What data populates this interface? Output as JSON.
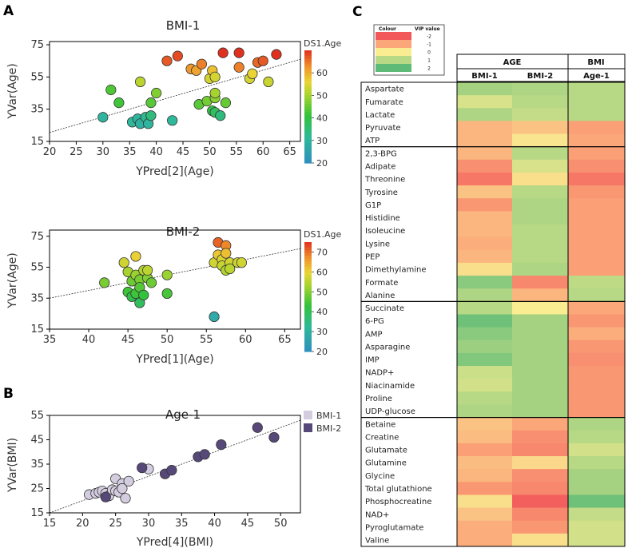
{
  "panels": {
    "a": "A",
    "b": "B",
    "c": "C"
  },
  "chart_data": [
    {
      "id": "bmi1",
      "type": "scatter",
      "title": "BMI-1",
      "xlabel": "YPred[2](Age)",
      "ylabel": "YVar(Age)",
      "xlim": [
        20,
        67
      ],
      "ylim": [
        15,
        77
      ],
      "xticks": [
        "20",
        "25",
        "30",
        "35",
        "40",
        "45",
        "50",
        "55",
        "60",
        "65"
      ],
      "yticks": [
        "15",
        "35",
        "55",
        "75"
      ],
      "trend": [
        [
          20,
          20.5
        ],
        [
          67,
          66
        ]
      ],
      "colorbar": {
        "title": "DS1.Age",
        "ticks": [
          "20",
          "30",
          "40",
          "50",
          "60"
        ],
        "range": [
          20,
          70
        ]
      },
      "points": [
        {
          "x": 30,
          "y": 30,
          "c": 30
        },
        {
          "x": 31.5,
          "y": 47,
          "c": 43
        },
        {
          "x": 33,
          "y": 39,
          "c": 42
        },
        {
          "x": 35.5,
          "y": 27,
          "c": 31
        },
        {
          "x": 36.5,
          "y": 29,
          "c": 30
        },
        {
          "x": 37,
          "y": 52,
          "c": 52
        },
        {
          "x": 37,
          "y": 26,
          "c": 29
        },
        {
          "x": 38,
          "y": 30,
          "c": 32
        },
        {
          "x": 38.5,
          "y": 26,
          "c": 30
        },
        {
          "x": 39,
          "y": 31,
          "c": 34
        },
        {
          "x": 39,
          "y": 39,
          "c": 44
        },
        {
          "x": 40,
          "y": 45,
          "c": 47
        },
        {
          "x": 42,
          "y": 65,
          "c": 67
        },
        {
          "x": 43,
          "y": 28,
          "c": 31
        },
        {
          "x": 44,
          "y": 68,
          "c": 68
        },
        {
          "x": 46.5,
          "y": 60,
          "c": 62
        },
        {
          "x": 47.5,
          "y": 59,
          "c": 61
        },
        {
          "x": 48,
          "y": 38,
          "c": 44
        },
        {
          "x": 48.5,
          "y": 63,
          "c": 64
        },
        {
          "x": 49.5,
          "y": 40,
          "c": 46
        },
        {
          "x": 50,
          "y": 54,
          "c": 54
        },
        {
          "x": 50.5,
          "y": 34,
          "c": 40
        },
        {
          "x": 50.5,
          "y": 59,
          "c": 58
        },
        {
          "x": 51,
          "y": 33,
          "c": 37
        },
        {
          "x": 51,
          "y": 55,
          "c": 54
        },
        {
          "x": 51,
          "y": 42,
          "c": 48
        },
        {
          "x": 51,
          "y": 45,
          "c": 50
        },
        {
          "x": 52,
          "y": 31,
          "c": 34
        },
        {
          "x": 52.5,
          "y": 70,
          "c": 72
        },
        {
          "x": 53,
          "y": 39,
          "c": 45
        },
        {
          "x": 55.5,
          "y": 70,
          "c": 71
        },
        {
          "x": 55.5,
          "y": 61,
          "c": 64
        },
        {
          "x": 57.5,
          "y": 54,
          "c": 54
        },
        {
          "x": 58,
          "y": 57,
          "c": 56
        },
        {
          "x": 59,
          "y": 64,
          "c": 66
        },
        {
          "x": 60,
          "y": 65,
          "c": 67
        },
        {
          "x": 61,
          "y": 52,
          "c": 53
        },
        {
          "x": 62.5,
          "y": 69,
          "c": 70
        }
      ]
    },
    {
      "id": "bmi2",
      "type": "scatter",
      "title": "BMI-2",
      "xlabel": "YPred[1](Age)",
      "ylabel": "YVar(Age)",
      "xlim": [
        35,
        67
      ],
      "ylim": [
        15,
        79
      ],
      "xticks": [
        "35",
        "40",
        "45",
        "50",
        "55",
        "60",
        "65"
      ],
      "yticks": [
        "15",
        "35",
        "55",
        "75"
      ],
      "trend": [
        [
          35,
          35
        ],
        [
          67,
          67
        ]
      ],
      "colorbar": {
        "title": "DS1.Age",
        "ticks": [
          "20",
          "30",
          "40",
          "50",
          "60",
          "70"
        ],
        "range": [
          20,
          75
        ]
      },
      "points": [
        {
          "x": 42,
          "y": 45,
          "c": 49
        },
        {
          "x": 44.5,
          "y": 58,
          "c": 57
        },
        {
          "x": 45,
          "y": 52,
          "c": 53
        },
        {
          "x": 45,
          "y": 39,
          "c": 44
        },
        {
          "x": 45.5,
          "y": 46,
          "c": 48
        },
        {
          "x": 45.5,
          "y": 36,
          "c": 41
        },
        {
          "x": 46,
          "y": 62,
          "c": 60
        },
        {
          "x": 46,
          "y": 50,
          "c": 52
        },
        {
          "x": 46,
          "y": 38,
          "c": 44
        },
        {
          "x": 46.5,
          "y": 47,
          "c": 49
        },
        {
          "x": 46.5,
          "y": 42,
          "c": 46
        },
        {
          "x": 46.5,
          "y": 32,
          "c": 39
        },
        {
          "x": 47,
          "y": 53,
          "c": 54
        },
        {
          "x": 47,
          "y": 37,
          "c": 43
        },
        {
          "x": 47.5,
          "y": 48,
          "c": 50
        },
        {
          "x": 47.5,
          "y": 53,
          "c": 55
        },
        {
          "x": 48,
          "y": 45,
          "c": 48
        },
        {
          "x": 50,
          "y": 50,
          "c": 52
        },
        {
          "x": 50,
          "y": 38,
          "c": 45
        },
        {
          "x": 56,
          "y": 23,
          "c": 28
        },
        {
          "x": 56,
          "y": 58,
          "c": 57
        },
        {
          "x": 56.5,
          "y": 71,
          "c": 71
        },
        {
          "x": 56.5,
          "y": 63,
          "c": 61
        },
        {
          "x": 57,
          "y": 60,
          "c": 58
        },
        {
          "x": 57,
          "y": 56,
          "c": 56
        },
        {
          "x": 57.5,
          "y": 69,
          "c": 68
        },
        {
          "x": 57.5,
          "y": 64,
          "c": 62
        },
        {
          "x": 57.5,
          "y": 53,
          "c": 54
        },
        {
          "x": 58,
          "y": 58,
          "c": 57
        },
        {
          "x": 58,
          "y": 54,
          "c": 55
        },
        {
          "x": 59,
          "y": 58,
          "c": 57
        },
        {
          "x": 59.5,
          "y": 58,
          "c": 57
        }
      ]
    },
    {
      "id": "age1",
      "type": "scatter",
      "title": "Age-1",
      "xlabel": "YPred[4](BMI)",
      "ylabel": "YVar(BMI)",
      "xlim": [
        15,
        53
      ],
      "ylim": [
        15,
        55
      ],
      "xticks": [
        "15",
        "20",
        "25",
        "30",
        "35",
        "40",
        "45",
        "50"
      ],
      "yticks": [
        "15",
        "25",
        "35",
        "45",
        "55"
      ],
      "trend": [
        [
          15,
          15
        ],
        [
          53,
          53
        ]
      ],
      "legend": [
        {
          "name": "BMI-1",
          "color": "#d4cde0"
        },
        {
          "name": "BMI-2",
          "color": "#57487a"
        }
      ],
      "points": [
        {
          "x": 21,
          "y": 22.5,
          "g": 0
        },
        {
          "x": 22,
          "y": 23,
          "g": 0
        },
        {
          "x": 22.5,
          "y": 23.5,
          "g": 0
        },
        {
          "x": 23,
          "y": 24,
          "g": 0
        },
        {
          "x": 23.5,
          "y": 23,
          "g": 0
        },
        {
          "x": 24,
          "y": 22,
          "g": 0
        },
        {
          "x": 24.5,
          "y": 24.5,
          "g": 0
        },
        {
          "x": 25,
          "y": 24,
          "g": 0
        },
        {
          "x": 25,
          "y": 29,
          "g": 0
        },
        {
          "x": 25.5,
          "y": 23.5,
          "g": 0
        },
        {
          "x": 26,
          "y": 27,
          "g": 0
        },
        {
          "x": 26,
          "y": 25,
          "g": 0
        },
        {
          "x": 26.5,
          "y": 21,
          "g": 0
        },
        {
          "x": 27,
          "y": 28,
          "g": 0
        },
        {
          "x": 30,
          "y": 33,
          "g": 0
        },
        {
          "x": 23.5,
          "y": 21.5,
          "g": 1
        },
        {
          "x": 29,
          "y": 33.5,
          "g": 1
        },
        {
          "x": 32.5,
          "y": 31,
          "g": 1
        },
        {
          "x": 33.5,
          "y": 32.5,
          "g": 1
        },
        {
          "x": 37.5,
          "y": 38,
          "g": 1
        },
        {
          "x": 38.5,
          "y": 39,
          "g": 1
        },
        {
          "x": 41,
          "y": 43,
          "g": 1
        },
        {
          "x": 46.5,
          "y": 50,
          "g": 1
        },
        {
          "x": 49,
          "y": 46,
          "g": 1
        }
      ]
    },
    {
      "id": "vip",
      "type": "heatmap",
      "legend": {
        "header_colour": "Colour",
        "header_value": "VIP value",
        "levels": [
          "-2",
          "-1",
          "0",
          "1",
          "2"
        ]
      },
      "columns": {
        "group_age": "AGE",
        "group_bmi": "BMI",
        "cols": [
          "BMI-1",
          "BMI-2",
          "Age-1"
        ]
      },
      "groups": [
        {
          "rows": [
            {
              "name": "Aspartate",
              "v": [
                1.2,
                1.1,
                1.0
              ]
            },
            {
              "name": "Fumarate",
              "v": [
                0.5,
                1.0,
                1.0
              ]
            },
            {
              "name": "Lactate",
              "v": [
                1.1,
                0.8,
                1.0
              ]
            },
            {
              "name": "Pyruvate",
              "v": [
                -0.8,
                -0.6,
                -1.1
              ]
            },
            {
              "name": "ATP",
              "v": [
                -0.8,
                -0.1,
                -1.0
              ]
            }
          ]
        },
        {
          "rows": [
            {
              "name": "2,3-BPG",
              "v": [
                -0.8,
                1.0,
                -1.1
              ]
            },
            {
              "name": "Adipate",
              "v": [
                -1.3,
                0.5,
                -1.3
              ]
            },
            {
              "name": "Threonine",
              "v": [
                -1.6,
                -0.2,
                -1.6
              ]
            },
            {
              "name": "Tyrosine",
              "v": [
                -0.6,
                1.0,
                -1.2
              ]
            },
            {
              "name": "G1P",
              "v": [
                -1.2,
                1.1,
                -1.1
              ]
            },
            {
              "name": "Histidine",
              "v": [
                -0.8,
                1.1,
                -1.1
              ]
            },
            {
              "name": "Isoleucine",
              "v": [
                -0.8,
                1.0,
                -1.1
              ]
            },
            {
              "name": "Lysine",
              "v": [
                -0.9,
                1.0,
                -1.1
              ]
            },
            {
              "name": "PEP",
              "v": [
                -0.8,
                1.0,
                -1.1
              ]
            },
            {
              "name": "Dimethylamine",
              "v": [
                -0.2,
                1.1,
                -1.1
              ]
            },
            {
              "name": "Formate",
              "v": [
                1.5,
                -1.4,
                0.9
              ]
            },
            {
              "name": "Alanine",
              "v": [
                1.1,
                -0.8,
                1.0
              ]
            }
          ]
        },
        {
          "rows": [
            {
              "name": "Succinate",
              "v": [
                1.0,
                0.0,
                -1.0
              ]
            },
            {
              "name": "6-PG",
              "v": [
                1.8,
                1.2,
                -1.2
              ]
            },
            {
              "name": "AMP",
              "v": [
                1.5,
                1.2,
                -0.9
              ]
            },
            {
              "name": "Asparagine",
              "v": [
                1.3,
                1.2,
                -1.2
              ]
            },
            {
              "name": "IMP",
              "v": [
                1.6,
                1.2,
                -1.3
              ]
            },
            {
              "name": "NADP+",
              "v": [
                0.7,
                1.2,
                -1.2
              ]
            },
            {
              "name": "Niacinamide",
              "v": [
                0.6,
                1.2,
                -1.2
              ]
            },
            {
              "name": "Proline",
              "v": [
                1.0,
                1.2,
                -1.2
              ]
            },
            {
              "name": "UDP-glucose",
              "v": [
                1.1,
                1.2,
                -1.2
              ]
            }
          ]
        },
        {
          "rows": [
            {
              "name": "Betaine",
              "v": [
                -0.6,
                -1.0,
                1.1
              ]
            },
            {
              "name": "Creatine",
              "v": [
                -0.7,
                -1.3,
                1.0
              ]
            },
            {
              "name": "Glutamate",
              "v": [
                -1.1,
                -1.4,
                0.6
              ]
            },
            {
              "name": "Glutamine",
              "v": [
                -0.7,
                -0.3,
                1.0
              ]
            },
            {
              "name": "Glycine",
              "v": [
                -0.8,
                -1.3,
                1.2
              ]
            },
            {
              "name": "Total glutathione",
              "v": [
                -1.2,
                -1.4,
                1.2
              ]
            },
            {
              "name": "Phosphocreatine",
              "v": [
                -0.2,
                -1.9,
                1.8
              ]
            },
            {
              "name": "NAD+",
              "v": [
                -0.6,
                -1.4,
                0.8
              ]
            },
            {
              "name": "Pyroglutamate",
              "v": [
                -0.9,
                -1.2,
                0.6
              ]
            },
            {
              "name": "Valine",
              "v": [
                -0.9,
                -0.2,
                0.6
              ]
            }
          ]
        }
      ]
    }
  ]
}
